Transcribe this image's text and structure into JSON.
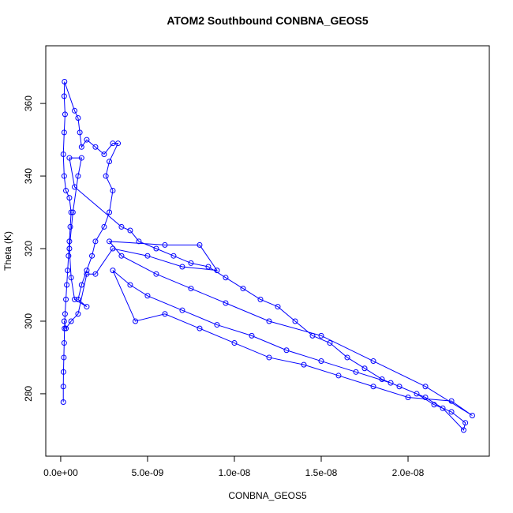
{
  "chart_data": {
    "type": "line",
    "title": "ATOM2 Southbound CONBNA_GEOS5",
    "x_label": "CONBNA_GEOS5",
    "y_label": "Theta (K)",
    "xlim": [
      -8.6e-10,
      2.468e-08
    ],
    "ylim": [
      262.8,
      375.9
    ],
    "xticks": [
      {
        "value": 0,
        "label": "0.0e+00"
      },
      {
        "value": 5e-09,
        "label": "5.0e-09"
      },
      {
        "value": 1e-08,
        "label": "1.0e-08"
      },
      {
        "value": 1.5e-08,
        "label": "1.5e-08"
      },
      {
        "value": 2e-08,
        "label": "2.0e-08"
      }
    ],
    "yticks": [
      280,
      300,
      320,
      340,
      360
    ],
    "grid": false,
    "markers": true,
    "series": [
      {
        "name": "CONBNA_GEOS5",
        "color": "#0000ff",
        "x": [
          1.5e-10,
          1.5e-10,
          1.6e-10,
          1.8e-10,
          2e-10,
          2.2e-10,
          2.5e-10,
          3e-10,
          3.5e-10,
          4e-10,
          4.5e-10,
          5e-10,
          5.5e-10,
          6e-10,
          5e-10,
          3e-10,
          2e-10,
          1.5e-10,
          2e-10,
          2.5e-10,
          2e-10,
          2.2e-10,
          8e-10,
          1e-09,
          1.1e-09,
          1.2e-09,
          1.5e-09,
          2e-09,
          2.5e-09,
          3e-09,
          3.3e-09,
          2.8e-09,
          2.6e-09,
          3e-09,
          2.8e-09,
          2.5e-09,
          2e-09,
          1.8e-09,
          1.5e-09,
          1.2e-09,
          1e-09,
          1.5e-09,
          8e-10,
          6e-10,
          5e-10,
          7e-10,
          1e-09,
          1.2e-09,
          5e-10,
          8e-10,
          3.5e-09,
          4e-09,
          4.5e-09,
          5.5e-09,
          6.5e-09,
          7.5e-09,
          8.5e-09,
          9.5e-09,
          1.05e-08,
          1.15e-08,
          1.25e-08,
          1.35e-08,
          1.45e-08,
          1.55e-08,
          1.65e-08,
          1.75e-08,
          1.85e-08,
          1.95e-08,
          2.05e-08,
          2.15e-08,
          2.25e-08,
          2.33e-08,
          2.32e-08,
          2.2e-08,
          2.1e-08,
          1.9e-08,
          1.7e-08,
          1.5e-08,
          1.3e-08,
          1.1e-08,
          9e-09,
          7e-09,
          5e-09,
          4e-09,
          3e-09,
          4.3e-09,
          6e-09,
          8e-09,
          1e-08,
          1.2e-08,
          1.4e-08,
          1.6e-08,
          1.8e-08,
          2e-08,
          2.25e-08,
          2.37e-08,
          2.1e-08,
          1.8e-08,
          1.5e-08,
          1.2e-08,
          9.5e-09,
          7.5e-09,
          5.5e-09,
          3.5e-09,
          2.8e-09,
          6e-09,
          8e-09,
          9e-09,
          7e-09,
          5e-09,
          3e-09,
          2e-09,
          1.5e-09,
          1e-09,
          6e-10,
          3e-10,
          2e-10
        ],
        "values": [
          277.7,
          282,
          286,
          290,
          294,
          298,
          302,
          306,
          310,
          314,
          318,
          322,
          326,
          330,
          334,
          336,
          340,
          346,
          352,
          357,
          362,
          366,
          358,
          356,
          352,
          348,
          350,
          348,
          346,
          349,
          349,
          344,
          340,
          336,
          330,
          326,
          322,
          318,
          314,
          310,
          306,
          304,
          306,
          312,
          320,
          330,
          340,
          345,
          345,
          337,
          326,
          325,
          322,
          320,
          318,
          316,
          315,
          312,
          309,
          306,
          304,
          300,
          296,
          294,
          290,
          287,
          284,
          282,
          280,
          277,
          275,
          272,
          270,
          276,
          279,
          283,
          286,
          289,
          292,
          296,
          299,
          303,
          307,
          310,
          314,
          300,
          302,
          298,
          294,
          290,
          288,
          285,
          282,
          279,
          278,
          274,
          282,
          289,
          296,
          300,
          305,
          309,
          313,
          318,
          322,
          321,
          321,
          314,
          315,
          318,
          320,
          313,
          313,
          302,
          300,
          298,
          300
        ]
      }
    ]
  }
}
